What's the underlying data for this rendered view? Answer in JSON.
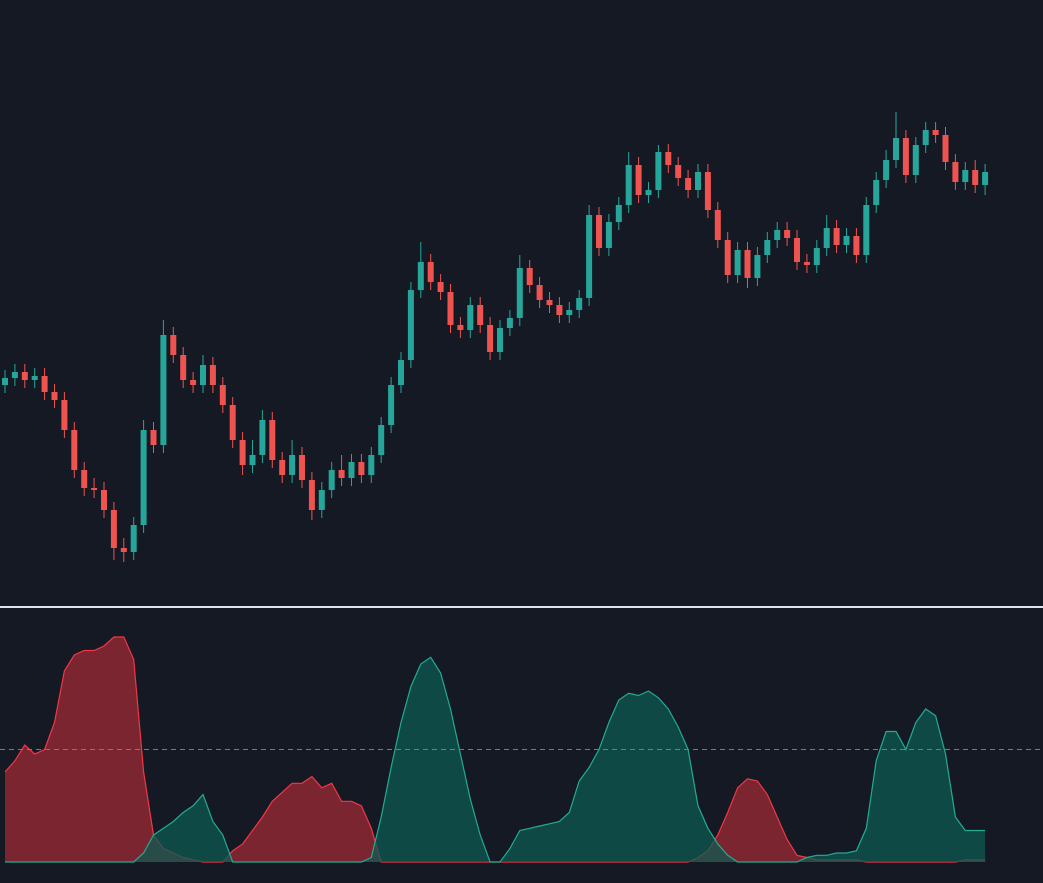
{
  "chart_data": [
    {
      "type": "candlestick",
      "up_color": "#26a69a",
      "down_color": "#ef5350",
      "ylim": [
        0,
        600
      ],
      "open": [
        215,
        222,
        228,
        220,
        224,
        208,
        200,
        170,
        130,
        112,
        110,
        90,
        52,
        48,
        75,
        170,
        155,
        265,
        245,
        220,
        215,
        235,
        215,
        195,
        160,
        135,
        145,
        180,
        140,
        125,
        145,
        120,
        90,
        110,
        130,
        122,
        138,
        125,
        145,
        175,
        215,
        240,
        310,
        338,
        318,
        308,
        275,
        270,
        295,
        275,
        248,
        272,
        282,
        332,
        315,
        300,
        295,
        285,
        290,
        302,
        385,
        352,
        378,
        395,
        435,
        405,
        410,
        448,
        435,
        422,
        410,
        428,
        390,
        360,
        325,
        350,
        322,
        345,
        360,
        370,
        362,
        338,
        335,
        352,
        372,
        355,
        364,
        345,
        395,
        420,
        440,
        462,
        425,
        455,
        470,
        465,
        438,
        418,
        430,
        415
      ],
      "high": [
        230,
        236,
        236,
        232,
        232,
        216,
        208,
        178,
        138,
        122,
        118,
        98,
        62,
        83,
        180,
        178,
        280,
        273,
        253,
        228,
        245,
        243,
        223,
        203,
        168,
        160,
        190,
        188,
        148,
        160,
        153,
        128,
        118,
        138,
        145,
        146,
        146,
        153,
        183,
        223,
        248,
        318,
        358,
        346,
        326,
        316,
        283,
        303,
        303,
        283,
        280,
        290,
        345,
        340,
        323,
        308,
        303,
        298,
        310,
        395,
        393,
        386,
        403,
        448,
        443,
        418,
        455,
        456,
        443,
        430,
        436,
        436,
        398,
        368,
        358,
        358,
        353,
        368,
        378,
        378,
        370,
        346,
        360,
        385,
        380,
        372,
        372,
        403,
        428,
        450,
        488,
        470,
        463,
        478,
        478,
        473,
        446,
        438,
        440,
        436
      ],
      "low": [
        207,
        214,
        212,
        212,
        200,
        192,
        162,
        122,
        104,
        102,
        82,
        40,
        38,
        40,
        67,
        147,
        147,
        237,
        212,
        207,
        207,
        207,
        187,
        152,
        125,
        127,
        137,
        132,
        117,
        117,
        112,
        80,
        82,
        102,
        114,
        114,
        117,
        117,
        137,
        167,
        207,
        232,
        302,
        310,
        300,
        267,
        262,
        262,
        267,
        240,
        240,
        264,
        274,
        307,
        292,
        287,
        277,
        277,
        282,
        294,
        344,
        344,
        370,
        387,
        397,
        397,
        402,
        427,
        414,
        402,
        402,
        382,
        352,
        317,
        317,
        312,
        314,
        337,
        352,
        354,
        330,
        327,
        327,
        344,
        347,
        347,
        337,
        337,
        387,
        412,
        432,
        417,
        417,
        447,
        457,
        430,
        410,
        410,
        407,
        405
      ],
      "close": [
        222,
        228,
        220,
        224,
        208,
        200,
        170,
        130,
        112,
        110,
        90,
        52,
        48,
        75,
        170,
        155,
        265,
        245,
        220,
        215,
        235,
        215,
        195,
        160,
        135,
        145,
        180,
        140,
        125,
        145,
        120,
        90,
        110,
        130,
        122,
        138,
        125,
        145,
        175,
        215,
        240,
        310,
        338,
        318,
        308,
        275,
        270,
        295,
        275,
        248,
        272,
        282,
        332,
        315,
        300,
        295,
        285,
        290,
        302,
        385,
        352,
        378,
        395,
        435,
        405,
        410,
        448,
        435,
        422,
        410,
        428,
        390,
        360,
        325,
        350,
        322,
        345,
        360,
        370,
        362,
        338,
        335,
        352,
        372,
        355,
        364,
        345,
        395,
        420,
        440,
        462,
        425,
        455,
        470,
        465,
        438,
        418,
        430,
        415,
        428
      ]
    },
    {
      "type": "area",
      "ylim": [
        0,
        100
      ],
      "threshold": 50,
      "threshold_color": "#787b86",
      "series": [
        {
          "color": "#f23645",
          "fill": "#9e2a35",
          "values": [
            40,
            45,
            52,
            48,
            50,
            62,
            85,
            92,
            94,
            94,
            96,
            100,
            100,
            90,
            40,
            12,
            6,
            4,
            2,
            1,
            0,
            0,
            0,
            5,
            8,
            14,
            20,
            27,
            31,
            35,
            35,
            38,
            33,
            35,
            27,
            27,
            25,
            15,
            0,
            0,
            0,
            0,
            0,
            0,
            0,
            0,
            0,
            0,
            0,
            0,
            0,
            0,
            0,
            0,
            0,
            0,
            0,
            0,
            0,
            0,
            0,
            0,
            0,
            0,
            0,
            0,
            0,
            0,
            0,
            0,
            2,
            5,
            12,
            22,
            33,
            37,
            36,
            30,
            20,
            10,
            3,
            2,
            1,
            1,
            1,
            1,
            1,
            0,
            0,
            0,
            0,
            0,
            0,
            0,
            0,
            0,
            0,
            1,
            1,
            1
          ]
        },
        {
          "color": "#22ab94",
          "fill": "#0e5a50",
          "values": [
            0,
            0,
            0,
            0,
            0,
            0,
            0,
            0,
            0,
            0,
            0,
            0,
            0,
            0,
            4,
            12,
            15,
            18,
            22,
            25,
            30,
            18,
            12,
            0,
            0,
            0,
            0,
            0,
            0,
            0,
            0,
            0,
            0,
            0,
            0,
            0,
            0,
            2,
            20,
            42,
            62,
            78,
            88,
            91,
            84,
            68,
            48,
            28,
            12,
            0,
            0,
            6,
            14,
            15,
            16,
            17,
            18,
            22,
            36,
            42,
            50,
            62,
            72,
            75,
            74,
            76,
            73,
            68,
            60,
            50,
            25,
            15,
            8,
            3,
            0,
            0,
            0,
            0,
            0,
            0,
            0,
            2,
            3,
            3,
            4,
            4,
            5,
            15,
            45,
            58,
            58,
            50,
            62,
            68,
            65,
            48,
            20,
            14,
            14,
            14
          ]
        }
      ]
    }
  ]
}
